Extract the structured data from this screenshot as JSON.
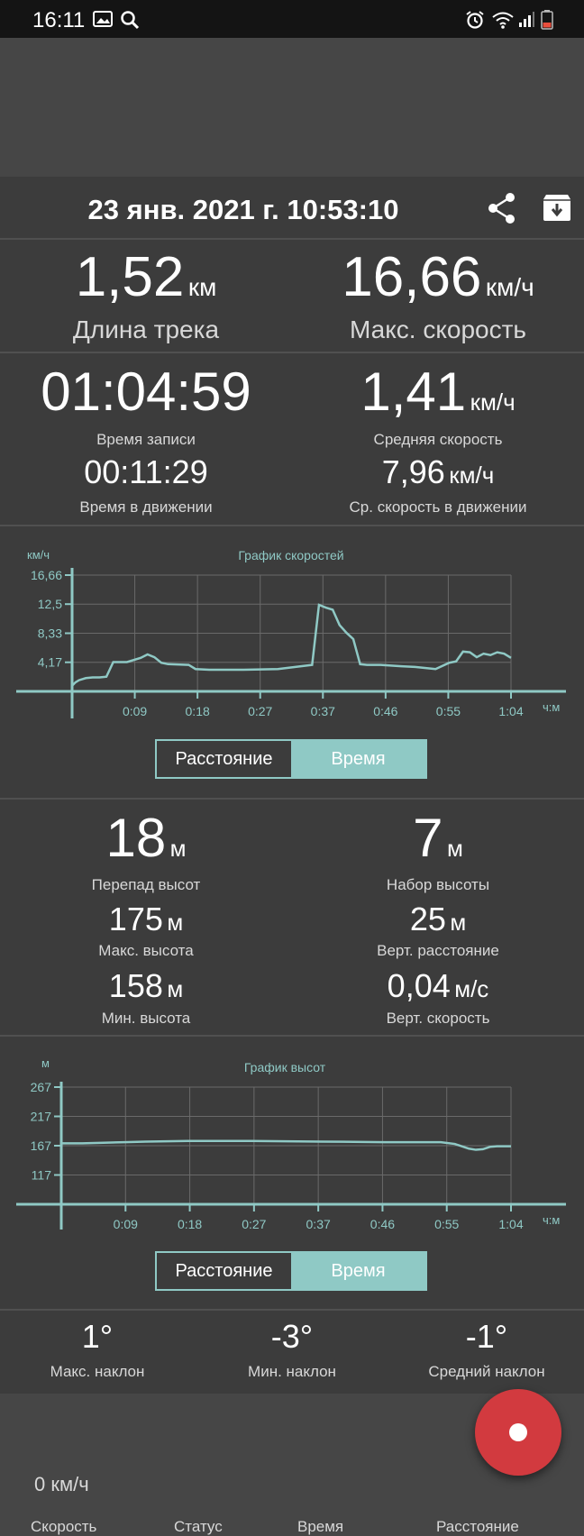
{
  "status_bar": {
    "time": "16:11"
  },
  "record": {
    "datetime": "23 янв. 2021 г. 10:53:10"
  },
  "stats_top": {
    "track_length": {
      "value": "1,52",
      "unit": "км",
      "label": "Длина трека"
    },
    "max_speed": {
      "value": "16,66",
      "unit": "км/ч",
      "label": "Макс. скорость"
    }
  },
  "stats_time": {
    "record_time": {
      "value": "01:04:59",
      "label": "Время записи"
    },
    "avg_speed": {
      "value": "1,41",
      "unit": "км/ч",
      "label": "Средняя скорость"
    },
    "moving_time": {
      "value": "00:11:29",
      "label": "Время в движении"
    },
    "moving_avg_speed": {
      "value": "7,96",
      "unit": "км/ч",
      "label": "Ср. скорость в движении"
    }
  },
  "speed_chart": {
    "title": "График скоростей",
    "ylabel": "км/ч",
    "xlabel": "ч:м",
    "yticks": [
      "16,66",
      "12,5",
      "8,33",
      "4,17"
    ],
    "xticks": [
      "0:09",
      "0:18",
      "0:27",
      "0:37",
      "0:46",
      "0:55",
      "1:04"
    ]
  },
  "toggle1": {
    "distance": "Расстояние",
    "time": "Время"
  },
  "stats_alt": {
    "alt_diff": {
      "value": "18",
      "unit": "м",
      "label": "Перепад высот"
    },
    "alt_gain": {
      "value": "7",
      "unit": "м",
      "label": "Набор высоты"
    },
    "max_alt": {
      "value": "175",
      "unit": "м",
      "label": "Макс. высота"
    },
    "vert_dist": {
      "value": "25",
      "unit": "м",
      "label": "Верт. расстояние"
    },
    "min_alt": {
      "value": "158",
      "unit": "м",
      "label": "Мин. высота"
    },
    "vert_speed": {
      "value": "0,04",
      "unit": "м/с",
      "label": "Верт. скорость"
    }
  },
  "alt_chart": {
    "title": "График высот",
    "ylabel": "м",
    "xlabel": "ч:м",
    "yticks": [
      "267",
      "217",
      "167",
      "117"
    ],
    "xticks": [
      "0:09",
      "0:18",
      "0:27",
      "0:37",
      "0:46",
      "0:55",
      "1:04"
    ]
  },
  "toggle2": {
    "distance": "Расстояние",
    "time": "Время"
  },
  "slope": {
    "max": {
      "value": "1°",
      "label": "Макс. наклон"
    },
    "min": {
      "value": "-3°",
      "label": "Мин. наклон"
    },
    "avg": {
      "value": "-1°",
      "label": "Средний наклон"
    }
  },
  "bottom": {
    "speed_value": "0 км/ч",
    "labels": {
      "speed": "Скорость",
      "status": "Статус",
      "time": "Время",
      "distance": "Расстояние"
    }
  },
  "chart_data": [
    {
      "type": "line",
      "title": "График скоростей",
      "ylabel": "км/ч",
      "xlabel": "ч:м",
      "ylim": [
        0,
        16.66
      ],
      "xlim": [
        0,
        64
      ],
      "x_unit": "minutes",
      "yticks": [
        4.17,
        8.33,
        12.5,
        16.66
      ],
      "xtick_labels": [
        "0:09",
        "0:18",
        "0:27",
        "0:37",
        "0:46",
        "0:55",
        "1:04"
      ],
      "series": [
        {
          "x": [
            0,
            0.5,
            1,
            2,
            3,
            4,
            5,
            6,
            8,
            10,
            11,
            12,
            13,
            14,
            17,
            18,
            20,
            25,
            30,
            35,
            36,
            37,
            38,
            39,
            40,
            41,
            42,
            43,
            44,
            45,
            48,
            50,
            53,
            55,
            56,
            57,
            58,
            59,
            60,
            61,
            62,
            63,
            64
          ],
          "y": [
            0.8,
            1.3,
            1.6,
            1.9,
            2.0,
            2.0,
            2.1,
            4.2,
            4.2,
            4.8,
            5.3,
            4.9,
            4.1,
            3.9,
            3.8,
            3.2,
            3.1,
            3.1,
            3.2,
            3.8,
            12.4,
            12.0,
            11.7,
            9.5,
            8.4,
            7.5,
            3.9,
            3.8,
            3.8,
            3.8,
            3.6,
            3.5,
            3.2,
            4.1,
            4.3,
            5.7,
            5.6,
            4.9,
            5.4,
            5.2,
            5.6,
            5.4,
            4.8
          ]
        }
      ]
    },
    {
      "type": "line",
      "title": "График высот",
      "ylabel": "м",
      "xlabel": "ч:м",
      "ylim": [
        67,
        267
      ],
      "xlim": [
        0,
        64
      ],
      "x_unit": "minutes",
      "yticks": [
        117,
        167,
        217,
        267
      ],
      "xtick_labels": [
        "0:09",
        "0:18",
        "0:27",
        "0:37",
        "0:46",
        "0:55",
        "1:04"
      ],
      "series": [
        {
          "x": [
            0,
            3,
            6,
            9,
            12,
            18,
            27,
            37,
            46,
            50,
            54,
            56,
            58,
            59,
            60,
            61,
            62,
            64
          ],
          "y": [
            171,
            171,
            172,
            173,
            174,
            175,
            175,
            174,
            173,
            173,
            173,
            170,
            162,
            160,
            161,
            165,
            166,
            166
          ]
        }
      ]
    }
  ]
}
